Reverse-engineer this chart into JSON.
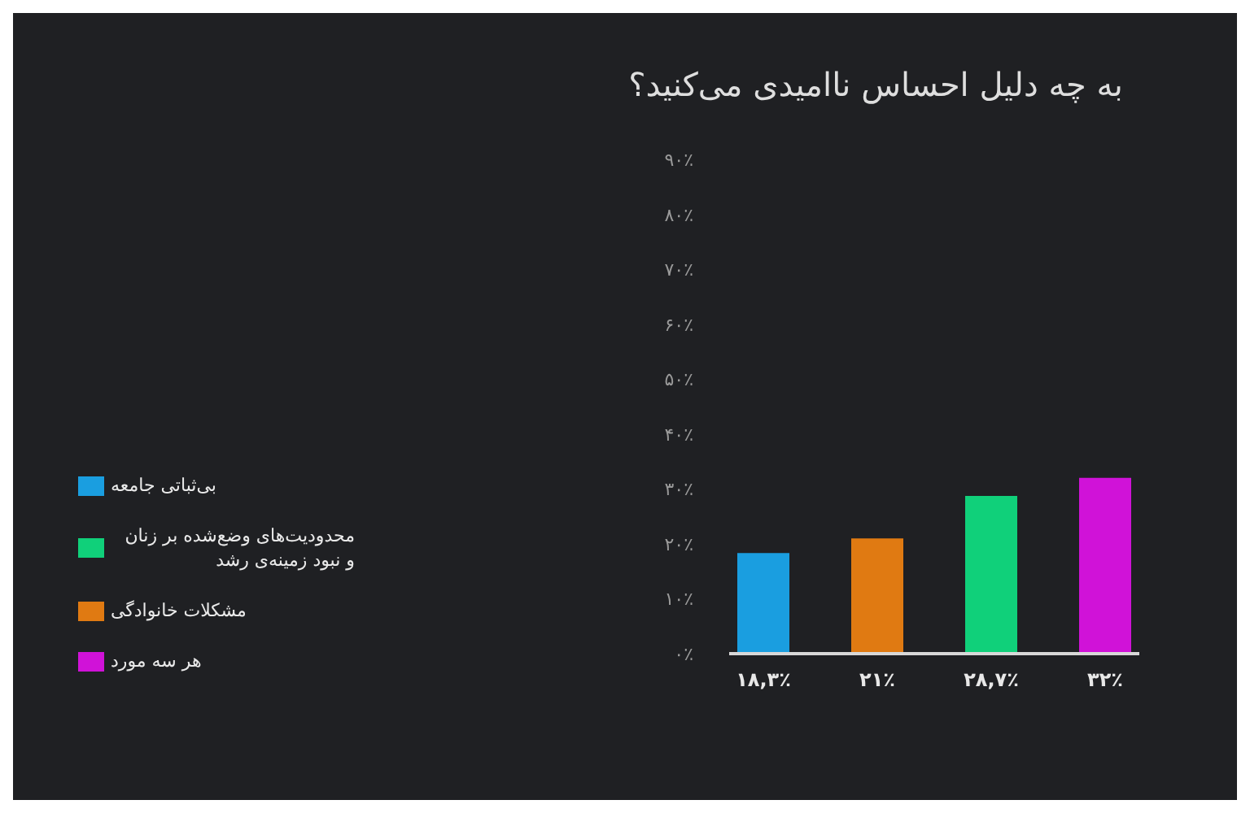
{
  "chart_data": {
    "type": "bar",
    "title": "به چه دلیل احساس ناامیدی می‌کنید؟",
    "categories": [
      null
    ],
    "series": [
      {
        "name": "بی‌ثباتی جامعه",
        "color": "#1a9ee0",
        "values": [
          18.3
        ],
        "value_labels": [
          "۱۸,۳٪"
        ]
      },
      {
        "name": "مشکلات خانوادگی",
        "color": "#e07a12",
        "values": [
          21
        ],
        "value_labels": [
          "۲۱٪"
        ]
      },
      {
        "name": "محدودیت‌های وضع‌شده بر زنان و نبود زمینه‌ی رشد",
        "color": "#10d07a",
        "values": [
          28.7
        ],
        "value_labels": [
          "۲۸,۷٪"
        ]
      },
      {
        "name": "هر سه مورد",
        "color": "#d012d8",
        "values": [
          32
        ],
        "value_labels": [
          "۳۲٪"
        ]
      }
    ],
    "ylim": [
      0,
      90
    ],
    "yticks": [
      {
        "value": 0,
        "label": "۰٪"
      },
      {
        "value": 10,
        "label": "۱۰٪"
      },
      {
        "value": 20,
        "label": "۲۰٪"
      },
      {
        "value": 30,
        "label": "۳۰٪"
      },
      {
        "value": 40,
        "label": "۴۰٪"
      },
      {
        "value": 50,
        "label": "۵۰٪"
      },
      {
        "value": 60,
        "label": "۶۰٪"
      },
      {
        "value": 70,
        "label": "۷۰٪"
      },
      {
        "value": 80,
        "label": "۸۰٪"
      },
      {
        "value": 90,
        "label": "۹۰٪"
      }
    ],
    "legend": "left",
    "grid": false
  }
}
